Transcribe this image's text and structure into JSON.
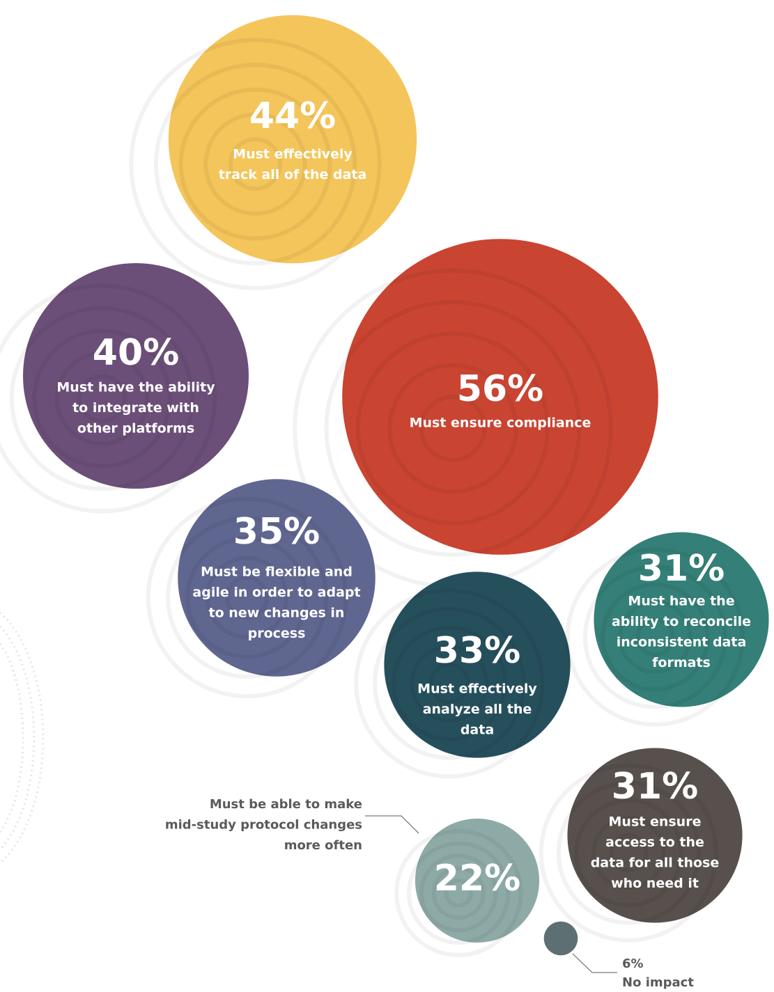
{
  "chart_data": {
    "type": "bubble",
    "categories": [
      [
        "Must effectively",
        "track all of the data"
      ],
      [
        "Must have the ability",
        "to integrate with",
        "other platforms"
      ],
      [
        "Must ensure compliance"
      ],
      [
        "Must be flexible and",
        "agile in order to adapt",
        "to new changes in",
        "process"
      ],
      [
        "Must effectively",
        "analyze all the",
        "data"
      ],
      [
        "Must have the",
        "ability to reconcile",
        "inconsistent data",
        "formats"
      ],
      [
        "Must ensure",
        "access to the",
        "data for all those",
        "who need it"
      ],
      [
        "Must be able to make",
        "mid-study protocol changes",
        "more often"
      ],
      [
        "No impact"
      ]
    ],
    "values": [
      44,
      40,
      56,
      35,
      33,
      31,
      31,
      22,
      6
    ],
    "value_labels": [
      "44%",
      "40%",
      "56%",
      "35%",
      "33%",
      "31%",
      "31%",
      "22%",
      "6%"
    ],
    "colors": [
      "#f4c55a",
      "#6b4f78",
      "#c94431",
      "#5f6690",
      "#264f5c",
      "#347f78",
      "#57504c",
      "#8eaaa7",
      "#5e6f74"
    ]
  }
}
